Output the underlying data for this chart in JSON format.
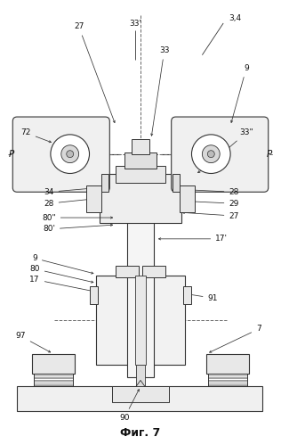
{
  "title": "Фиг. 7",
  "background_color": "#ffffff",
  "line_color": "#333333",
  "dashed_color": "#666666",
  "figsize": [
    3.16,
    4.99
  ],
  "dpi": 100
}
